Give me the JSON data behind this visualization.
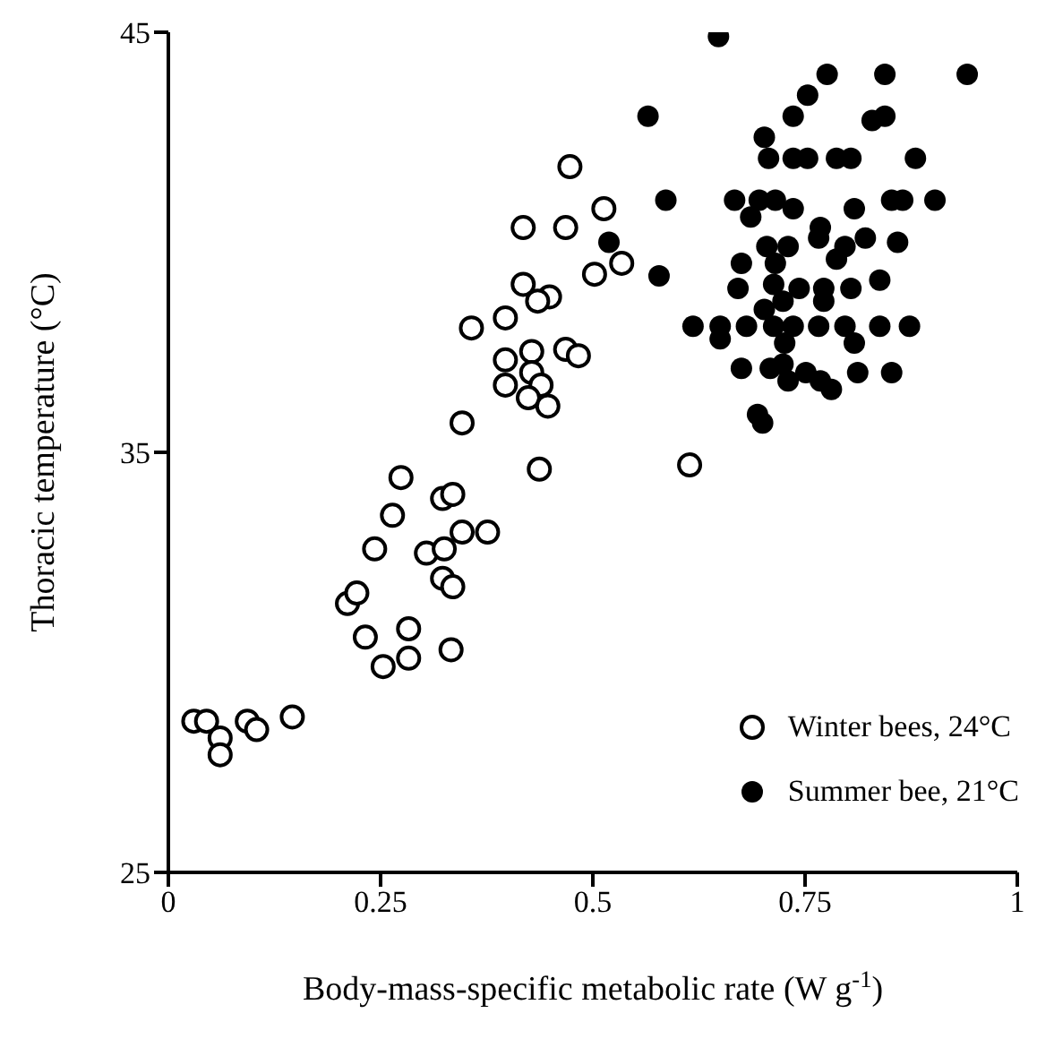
{
  "chart_data": {
    "type": "scatter",
    "xlabel": "Body-mass-specific metabolic rate (W g$^{-1}$)",
    "ylabel": "Thoracic temperature (°C)",
    "xlim": [
      0,
      1
    ],
    "xticks": [
      0,
      0.25,
      0.5,
      0.75,
      1
    ],
    "ylim": [
      25,
      45
    ],
    "yticks": [
      25,
      35,
      45
    ],
    "grid": false,
    "legend": "bottom right",
    "marker": "circle",
    "series": [
      {
        "name": "Winter bees, 24°C",
        "color": "#000000",
        "x": [
          0.03,
          0.045,
          0.061,
          0.061,
          0.093,
          0.104,
          0.146,
          0.473,
          0.513,
          0.418,
          0.468,
          0.502,
          0.418,
          0.449,
          0.435,
          0.397,
          0.357,
          0.397,
          0.428,
          0.468,
          0.483,
          0.428,
          0.397,
          0.439,
          0.424,
          0.447,
          0.346,
          0.437,
          0.274,
          0.323,
          0.335,
          0.264,
          0.243,
          0.304,
          0.325,
          0.346,
          0.376,
          0.323,
          0.335,
          0.211,
          0.222,
          0.232,
          0.283,
          0.283,
          0.333,
          0.253,
          0.614,
          0.534
        ],
        "values": [
          28.6,
          28.6,
          28.2,
          27.8,
          28.6,
          28.4,
          28.7,
          41.8,
          40.8,
          40.35,
          40.35,
          39.24,
          39.0,
          38.7,
          38.6,
          38.2,
          37.96,
          37.2,
          37.4,
          37.45,
          37.3,
          36.9,
          36.6,
          36.6,
          36.3,
          36.1,
          35.7,
          34.6,
          34.4,
          33.9,
          34.0,
          33.5,
          32.7,
          32.6,
          32.7,
          33.1,
          33.1,
          32.0,
          31.8,
          31.4,
          31.65,
          30.6,
          30.8,
          30.1,
          30.3,
          29.9,
          34.7,
          39.5
        ]
      },
      {
        "name": "Summer bee, 21°C",
        "color": "#000000",
        "x": [
          0.648,
          0.776,
          0.844,
          0.941,
          0.753,
          0.565,
          0.736,
          0.829,
          0.844,
          0.702,
          0.707,
          0.736,
          0.753,
          0.787,
          0.804,
          0.88,
          0.586,
          0.667,
          0.696,
          0.715,
          0.686,
          0.736,
          0.808,
          0.852,
          0.865,
          0.903,
          0.519,
          0.578,
          0.768,
          0.766,
          0.797,
          0.821,
          0.859,
          0.705,
          0.73,
          0.787,
          0.675,
          0.715,
          0.713,
          0.743,
          0.671,
          0.772,
          0.804,
          0.838,
          0.772,
          0.702,
          0.724,
          0.618,
          0.65,
          0.681,
          0.713,
          0.736,
          0.766,
          0.797,
          0.838,
          0.873,
          0.65,
          0.726,
          0.808,
          0.724,
          0.675,
          0.709,
          0.751,
          0.812,
          0.852,
          0.73,
          0.768,
          0.781,
          0.694,
          0.7
        ],
        "values": [
          44.9,
          44.0,
          44.0,
          44.0,
          43.5,
          43.0,
          43.0,
          42.9,
          43.0,
          42.5,
          42.0,
          42.0,
          42.0,
          42.0,
          42.0,
          42.0,
          41.0,
          41.0,
          41.0,
          41.0,
          40.6,
          40.8,
          40.8,
          41.0,
          41.0,
          41.0,
          40.0,
          39.2,
          40.35,
          40.1,
          39.9,
          40.1,
          40.0,
          39.9,
          39.9,
          39.6,
          39.5,
          39.5,
          39.0,
          38.9,
          38.9,
          38.9,
          38.9,
          39.1,
          38.6,
          38.4,
          38.6,
          38.0,
          38.0,
          38.0,
          38.0,
          38.0,
          38.0,
          38.0,
          38.0,
          38.0,
          37.7,
          37.6,
          37.6,
          37.1,
          37.0,
          37.0,
          36.9,
          36.9,
          36.9,
          36.7,
          36.7,
          36.5,
          35.9,
          35.7
        ]
      }
    ]
  }
}
